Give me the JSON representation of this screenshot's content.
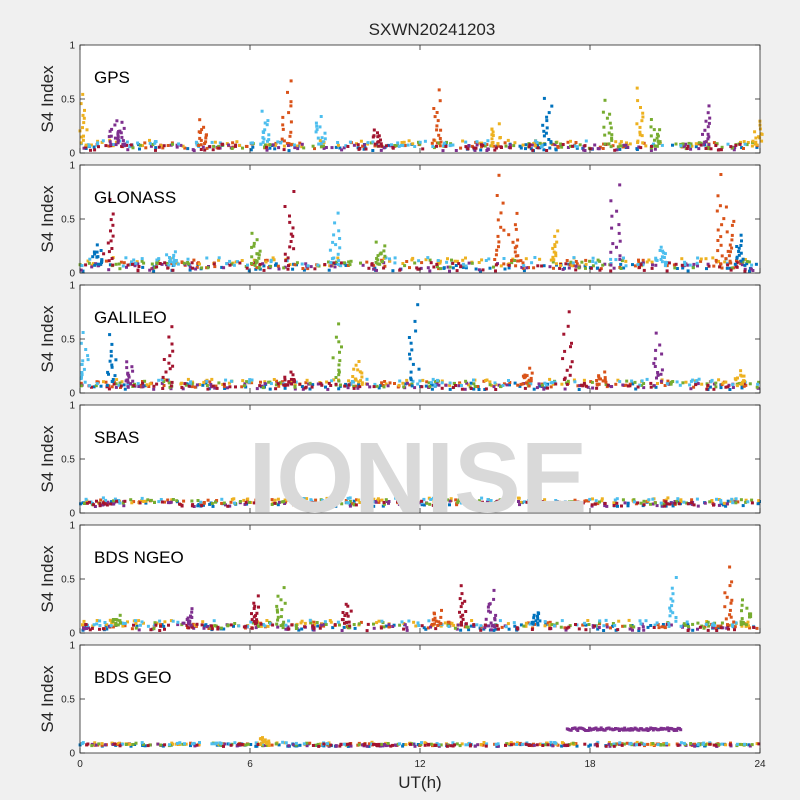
{
  "chart_data": {
    "type": "scatter",
    "title": "SXWN20241203",
    "xlabel": "UT(h)",
    "ylabel": "S4 Index",
    "xlim": [
      0,
      24
    ],
    "ylim": [
      0,
      1
    ],
    "xticks": [
      0,
      6,
      12,
      18,
      24
    ],
    "yticks": [
      0,
      0.5,
      1
    ],
    "ytick_labels": [
      "0",
      "0.5",
      "1"
    ],
    "watermark": "IONISE",
    "series_colors": [
      "#0072BD",
      "#D95319",
      "#EDB120",
      "#7E2F8E",
      "#77AC30",
      "#4DBEEE",
      "#A2142F"
    ],
    "panels": [
      {
        "label": "GPS",
        "baseline": 0.07,
        "noise": 0.03,
        "spikes": [
          {
            "x": 0.1,
            "peak": 0.55,
            "color": 2
          },
          {
            "x": 1.2,
            "peak": 0.3,
            "color": 3
          },
          {
            "x": 1.5,
            "peak": 0.28,
            "color": 3
          },
          {
            "x": 4.3,
            "peak": 0.3,
            "color": 1
          },
          {
            "x": 6.5,
            "peak": 0.38,
            "color": 5
          },
          {
            "x": 7.3,
            "peak": 0.68,
            "color": 1
          },
          {
            "x": 8.5,
            "peak": 0.35,
            "color": 5
          },
          {
            "x": 10.5,
            "peak": 0.22,
            "color": 6
          },
          {
            "x": 12.6,
            "peak": 0.58,
            "color": 1
          },
          {
            "x": 14.7,
            "peak": 0.28,
            "color": 2
          },
          {
            "x": 16.5,
            "peak": 0.52,
            "color": 0
          },
          {
            "x": 18.6,
            "peak": 0.48,
            "color": 4
          },
          {
            "x": 19.8,
            "peak": 0.6,
            "color": 2
          },
          {
            "x": 20.3,
            "peak": 0.3,
            "color": 4
          },
          {
            "x": 22.1,
            "peak": 0.45,
            "color": 3
          },
          {
            "x": 23.9,
            "peak": 0.3,
            "color": 2
          }
        ]
      },
      {
        "label": "GLONASS",
        "baseline": 0.08,
        "noise": 0.04,
        "spikes": [
          {
            "x": 0.6,
            "peak": 0.25,
            "color": 0
          },
          {
            "x": 1.0,
            "peak": 0.68,
            "color": 6
          },
          {
            "x": 3.2,
            "peak": 0.2,
            "color": 5
          },
          {
            "x": 6.2,
            "peak": 0.38,
            "color": 4
          },
          {
            "x": 7.4,
            "peak": 0.75,
            "color": 6
          },
          {
            "x": 9.0,
            "peak": 0.55,
            "color": 5
          },
          {
            "x": 10.6,
            "peak": 0.28,
            "color": 4
          },
          {
            "x": 14.8,
            "peak": 0.9,
            "color": 1
          },
          {
            "x": 15.3,
            "peak": 0.55,
            "color": 1
          },
          {
            "x": 16.8,
            "peak": 0.4,
            "color": 2
          },
          {
            "x": 18.9,
            "peak": 0.82,
            "color": 3
          },
          {
            "x": 20.5,
            "peak": 0.25,
            "color": 5
          },
          {
            "x": 22.6,
            "peak": 0.9,
            "color": 1
          },
          {
            "x": 22.9,
            "peak": 0.6,
            "color": 1
          },
          {
            "x": 23.3,
            "peak": 0.35,
            "color": 0
          }
        ]
      },
      {
        "label": "GALILEO",
        "baseline": 0.08,
        "noise": 0.03,
        "spikes": [
          {
            "x": 0.2,
            "peak": 0.55,
            "color": 5
          },
          {
            "x": 1.1,
            "peak": 0.55,
            "color": 0
          },
          {
            "x": 1.8,
            "peak": 0.3,
            "color": 3
          },
          {
            "x": 3.1,
            "peak": 0.62,
            "color": 6
          },
          {
            "x": 7.4,
            "peak": 0.18,
            "color": 6
          },
          {
            "x": 9.1,
            "peak": 0.65,
            "color": 4
          },
          {
            "x": 9.8,
            "peak": 0.3,
            "color": 2
          },
          {
            "x": 11.8,
            "peak": 0.82,
            "color": 0
          },
          {
            "x": 15.8,
            "peak": 0.22,
            "color": 1
          },
          {
            "x": 17.2,
            "peak": 0.75,
            "color": 6
          },
          {
            "x": 18.4,
            "peak": 0.2,
            "color": 1
          },
          {
            "x": 20.4,
            "peak": 0.55,
            "color": 3
          },
          {
            "x": 23.3,
            "peak": 0.2,
            "color": 2
          }
        ]
      },
      {
        "label": "SBAS",
        "baseline": 0.1,
        "noise": 0.025,
        "spikes": []
      },
      {
        "label": "BDS NGEO",
        "baseline": 0.07,
        "noise": 0.03,
        "spikes": [
          {
            "x": 1.3,
            "peak": 0.15,
            "color": 4
          },
          {
            "x": 3.8,
            "peak": 0.22,
            "color": 3
          },
          {
            "x": 6.2,
            "peak": 0.35,
            "color": 6
          },
          {
            "x": 7.1,
            "peak": 0.42,
            "color": 4
          },
          {
            "x": 9.4,
            "peak": 0.28,
            "color": 6
          },
          {
            "x": 12.6,
            "peak": 0.22,
            "color": 1
          },
          {
            "x": 13.5,
            "peak": 0.45,
            "color": 6
          },
          {
            "x": 14.5,
            "peak": 0.38,
            "color": 3
          },
          {
            "x": 16.1,
            "peak": 0.2,
            "color": 0
          },
          {
            "x": 20.9,
            "peak": 0.5,
            "color": 5
          },
          {
            "x": 22.9,
            "peak": 0.6,
            "color": 1
          },
          {
            "x": 23.5,
            "peak": 0.3,
            "color": 4
          }
        ]
      },
      {
        "label": "BDS GEO",
        "baseline": 0.08,
        "noise": 0.012,
        "spikes": [
          {
            "x": 6.5,
            "peak": 0.14,
            "color": 2
          }
        ],
        "segments": [
          {
            "x_start": 17.2,
            "x_end": 21.2,
            "level": 0.22,
            "color": 3
          }
        ]
      }
    ]
  }
}
